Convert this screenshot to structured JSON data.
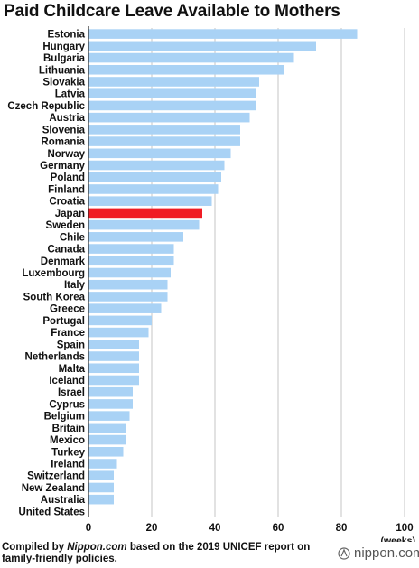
{
  "title": "Paid Childcare Leave Available to Mothers",
  "footnote": {
    "prefix": "Compiled by ",
    "source": "Nippon.com",
    "suffix": " based on the 2019 UNICEF report on family-friendly policies."
  },
  "logo": {
    "text": "nippon.com",
    "icon": "nippon-logo-icon"
  },
  "colors": {
    "bar": "#a9d2f5",
    "highlight": "#f01c24",
    "grid": "#b8b8b8",
    "axis": "#222222"
  },
  "chart_data": {
    "type": "bar",
    "orientation": "horizontal",
    "title": "Paid Childcare Leave Available to Mothers",
    "xlabel": "(weeks)",
    "xlim": [
      0,
      100
    ],
    "xticks": [
      0,
      20,
      40,
      60,
      80,
      100
    ],
    "grid": true,
    "highlight": "Japan",
    "categories": [
      "Estonia",
      "Hungary",
      "Bulgaria",
      "Lithuania",
      "Slovakia",
      "Latvia",
      "Czech Republic",
      "Austria",
      "Slovenia",
      "Romania",
      "Norway",
      "Germany",
      "Poland",
      "Finland",
      "Croatia",
      "Japan",
      "Sweden",
      "Chile",
      "Canada",
      "Denmark",
      "Luxembourg",
      "Italy",
      "South Korea",
      "Greece",
      "Portugal",
      "France",
      "Spain",
      "Netherlands",
      "Malta",
      "Iceland",
      "Israel",
      "Cyprus",
      "Belgium",
      "Britain",
      "Mexico",
      "Turkey",
      "Ireland",
      "Switzerland",
      "New Zealand",
      "Australia",
      "United States"
    ],
    "values": [
      85,
      72,
      65,
      62,
      54,
      53,
      53,
      51,
      48,
      48,
      45,
      43,
      42,
      41,
      39,
      36,
      35,
      30,
      27,
      27,
      26,
      25,
      25,
      23,
      20,
      19,
      16,
      16,
      16,
      16,
      14,
      14,
      13,
      12,
      12,
      11,
      9,
      8,
      8,
      8,
      0
    ]
  }
}
